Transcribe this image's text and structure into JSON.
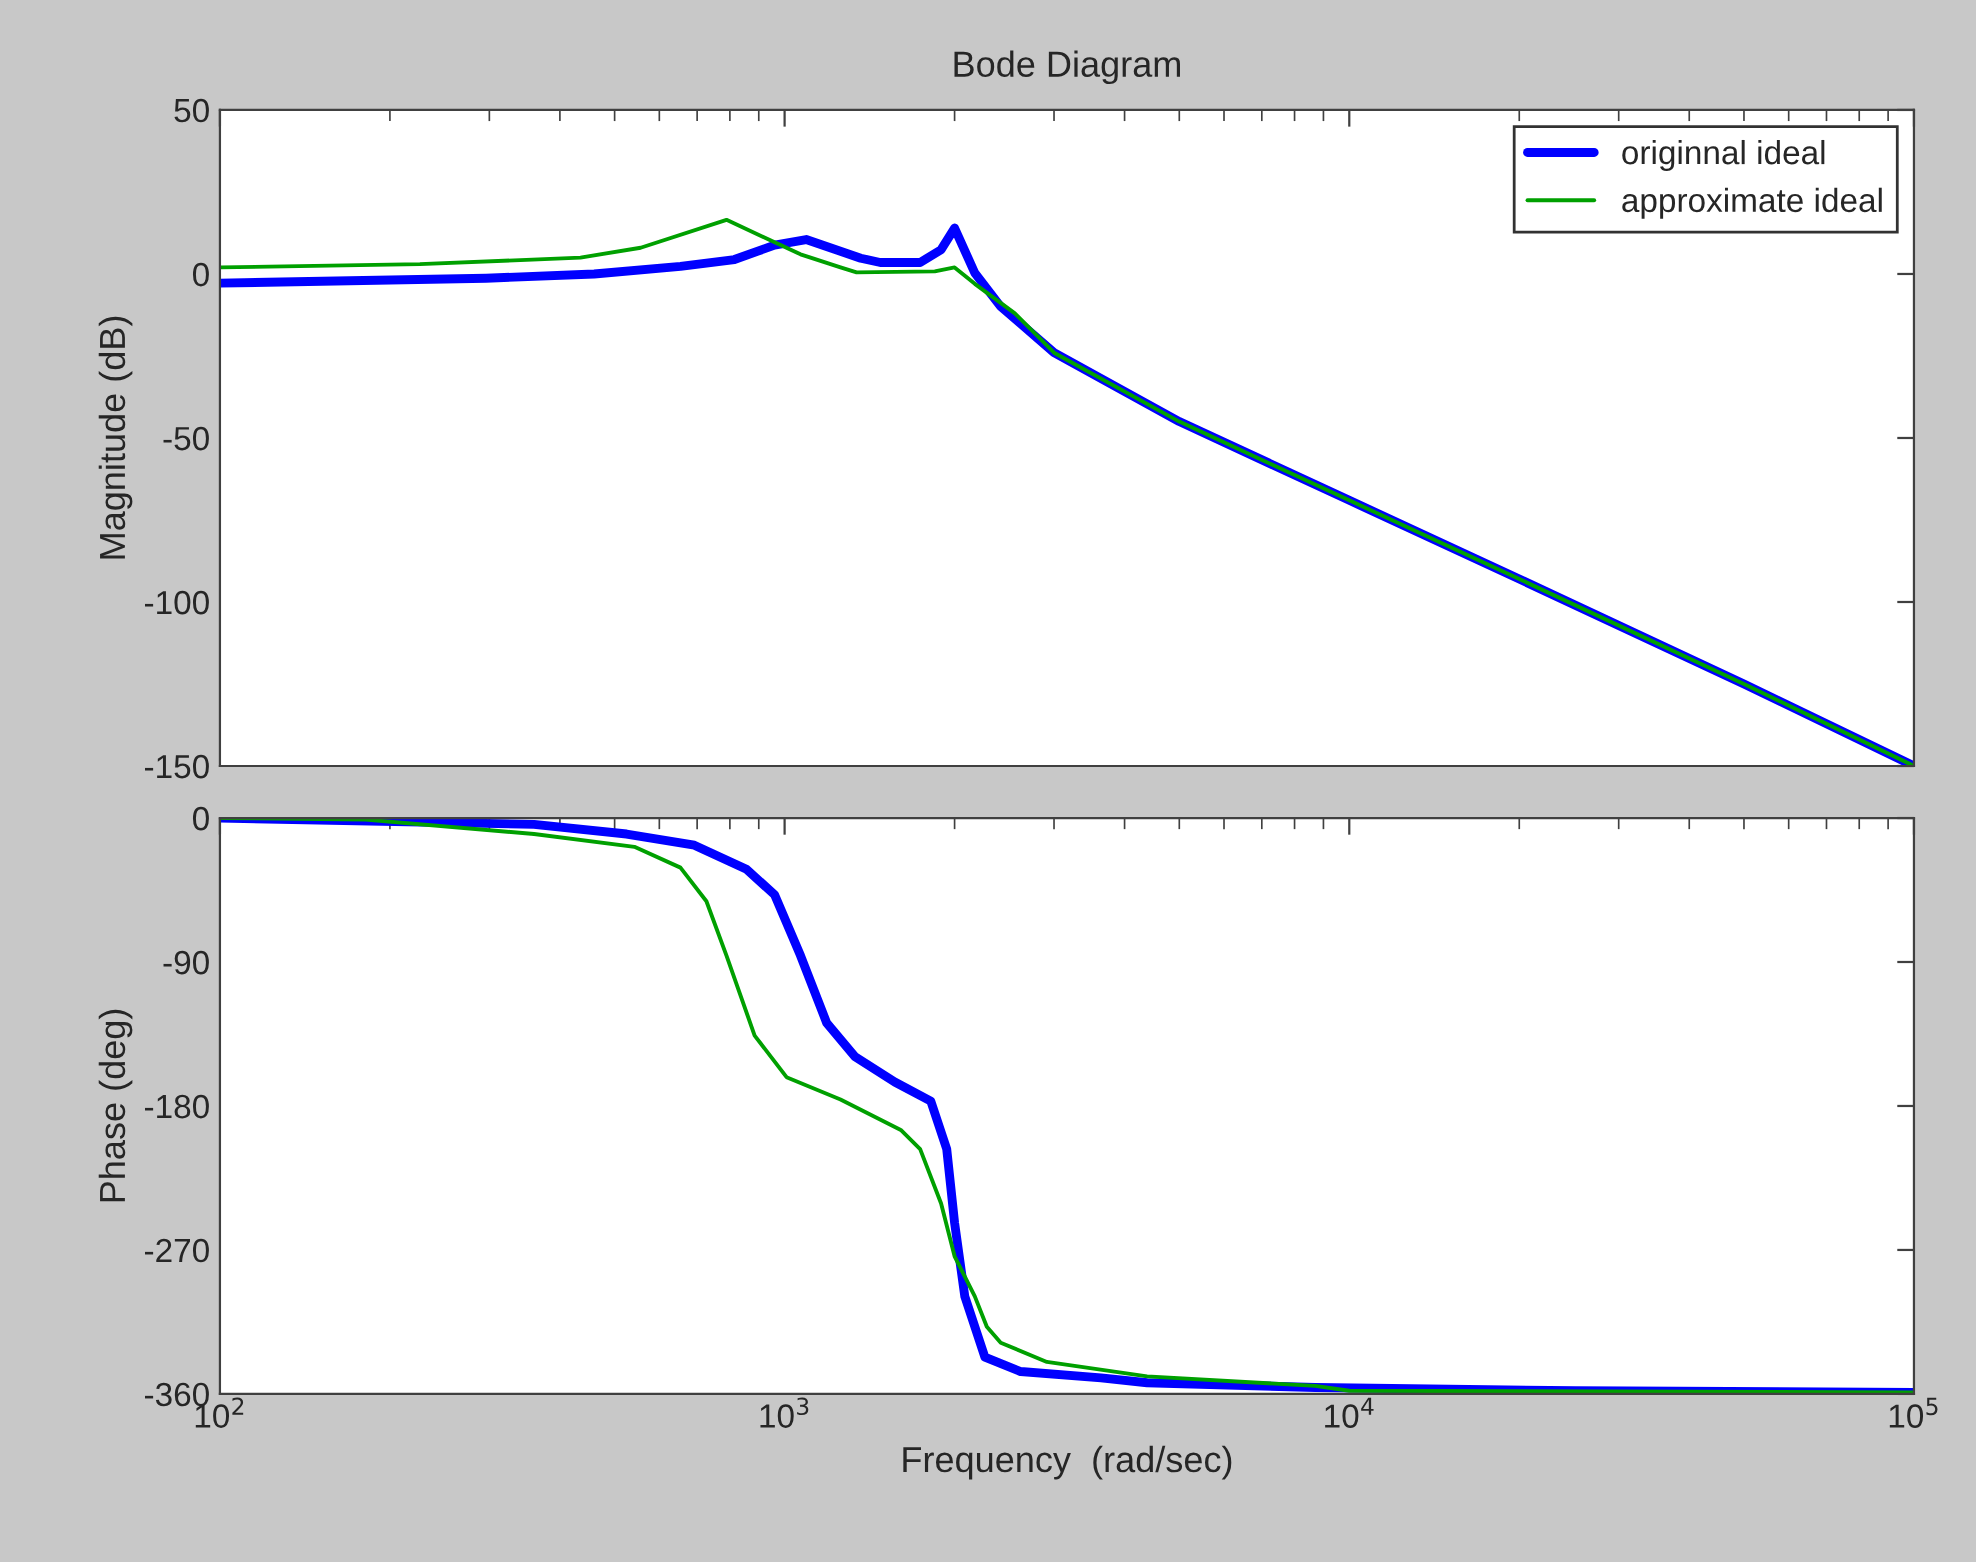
{
  "chart_data": [
    {
      "type": "line",
      "title": "Bode Diagram",
      "ylabel": "Magnitude (dB)",
      "log": "x",
      "grid": false,
      "legend": "top right",
      "tick_labels": "y",
      "xlim": [
        100,
        100000
      ],
      "xticks": [
        {
          "value": 100,
          "label": null
        },
        {
          "value": 1000,
          "label": null
        },
        {
          "value": 10000,
          "label": null
        },
        {
          "value": 100000,
          "label": null
        }
      ],
      "ylim": [
        -150,
        50
      ],
      "yticks": [
        -150,
        -100,
        -50,
        0,
        50
      ],
      "series": [
        {
          "name": "originnal ideal",
          "color": "#0000ff",
          "x": [
            100,
            296,
            460,
            654,
            815,
            960,
            1092,
            1364,
            1477,
            1738,
            1893,
            2000,
            2172,
            2410,
            3000,
            5000,
            10000,
            20000,
            50000,
            100000
          ],
          "values": [
            -2.8,
            -1.3,
            0,
            2.3,
            4.4,
            8.8,
            10.5,
            4.8,
            3.5,
            3.5,
            7.4,
            14,
            0.3,
            -9.8,
            -24,
            -45,
            -69,
            -93,
            -125,
            -150
          ]
        },
        {
          "name": "approximate ideal",
          "color": "#00a000",
          "x": [
            100,
            226,
            349,
            435,
            556,
            789,
            1067,
            1256,
            1341,
            1845,
            2000,
            2172,
            2557,
            3000,
            5000,
            10000,
            20000,
            50000,
            100000
          ],
          "values": [
            2,
            3,
            4.3,
            5,
            8,
            16.5,
            6,
            2,
            0.5,
            0.8,
            2,
            -3,
            -12,
            -24,
            -45,
            -69,
            -93,
            -125,
            -150
          ]
        }
      ]
    },
    {
      "type": "line",
      "xlabel": "Frequency  (rad/sec)",
      "ylabel": "Phase (deg)",
      "log": "x",
      "grid": false,
      "xlim": [
        100,
        100000
      ],
      "xticks": [
        {
          "value": 100,
          "label": "10$^{2}$"
        },
        {
          "value": 1000,
          "label": "10$^{3}$"
        },
        {
          "value": 10000,
          "label": "10$^{4}$"
        },
        {
          "value": 100000,
          "label": "10$^{5}$"
        }
      ],
      "ylim": [
        -360,
        0
      ],
      "yticks": [
        -360,
        -270,
        -180,
        -90,
        0
      ],
      "series": [
        {
          "color": "#0000ff",
          "x": [
            100,
            360,
            525,
            692,
            856,
            960,
            1067,
            1187,
            1331,
            1567,
            1815,
            1937,
            2000,
            2085,
            2263,
            2618,
            3634,
            4385,
            8707,
            25160,
            100000
          ],
          "values": [
            0,
            -4,
            -10,
            -17,
            -32,
            -48,
            -86,
            -128,
            -149,
            -165,
            -177,
            -207,
            -253,
            -299,
            -337,
            -346,
            -350,
            -353,
            -356,
            -358,
            -359
          ]
        },
        {
          "color": "#00a000",
          "x": [
            100,
            181,
            360,
            542,
            654,
            727,
            789,
            885,
            1008,
            1256,
            1606,
            1738,
            1893,
            2000,
            2172,
            2281,
            2414,
            2914,
            4385,
            8707,
            10000,
            100000
          ],
          "values": [
            0,
            -1,
            -10,
            -18,
            -31,
            -52,
            -86,
            -136,
            -162,
            -176,
            -195,
            -207,
            -241,
            -274,
            -299,
            -318,
            -328,
            -340,
            -349,
            -355,
            -358,
            -359
          ]
        }
      ]
    }
  ]
}
